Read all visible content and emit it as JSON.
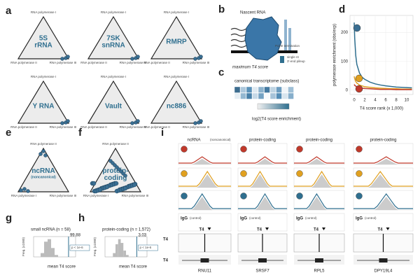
{
  "panel_labels": [
    "a",
    "b",
    "c",
    "d",
    "e",
    "f",
    "g",
    "h",
    "i"
  ],
  "polymerases": [
    "RNA polymerase I",
    "RNA polymerase II",
    "RNA polymerase III"
  ],
  "a": {
    "triangles": [
      {
        "label": [
          "5S",
          "rRNA"
        ]
      },
      {
        "label": [
          "7SK",
          "snRNA"
        ]
      },
      {
        "label": [
          "RMRP"
        ]
      },
      {
        "label": [
          "Y RNA"
        ]
      },
      {
        "label": [
          "Vault"
        ]
      },
      {
        "label": [
          "nc886"
        ]
      }
    ]
  },
  "b": {
    "nascent": "Nascent RNA",
    "termination": "Pol III termination",
    "pileup": [
      "single nt",
      "3′-end pileup"
    ],
    "max": "maximum T4 score"
  },
  "c": {
    "title": "canonical transcriptome (subclass)",
    "colorbar": "log2(T4 score enrichment)"
  },
  "e": {
    "label": [
      "ncRNA",
      "(noncanonical)"
    ]
  },
  "f": {
    "label": [
      "protein-",
      "coding"
    ]
  },
  "g": {
    "title": "small ncRNA (n = 58)",
    "ylabel": "Freq. (x1000)",
    "xlabel": "mean T4 score",
    "xlim": [
      0,
      120
    ],
    "ylim": [
      0,
      1.6
    ],
    "bins": [
      20,
      30,
      40,
      50,
      60,
      70
    ],
    "counts": [
      0.3,
      1.2,
      1.4,
      0.7,
      0.15
    ],
    "marker": 99.88,
    "marker_label": "99.88",
    "p": "p < 1e-6"
  },
  "h": {
    "title": "protein-coding (n = 1,572)",
    "ylabel": "Freq. (x1000)",
    "xlabel": "mean T4 score",
    "xlim": [
      0,
      4
    ],
    "ylim": [
      0,
      1.6
    ],
    "bins": [
      0.75,
      1,
      1.25,
      1.5,
      1.75,
      2,
      2.25
    ],
    "counts": [
      0.3,
      1.0,
      1.4,
      1.1,
      0.5,
      0.15
    ],
    "marker": 3.03,
    "marker_label": "3.03",
    "p": "p < 1e-6"
  },
  "i": {
    "columns": [
      {
        "title": "ncRNA",
        "subtitle": "(noncanonical)",
        "gene": "RNU11"
      },
      {
        "title": "protein-coding",
        "gene": "SRSF7"
      },
      {
        "title": "protein-coding",
        "gene": "RPL5"
      },
      {
        "title": "protein-coding",
        "gene": "DPY19L4"
      }
    ],
    "igg": "IgG",
    "igg_note": "(control)",
    "t4": "T4"
  },
  "chart_data": {
    "type": "line",
    "xlabel": "T4 score rank (x 1,000)",
    "ylabel": "polymerase enrichment (obs/exp)",
    "x": [
      0,
      0.1,
      0.3,
      0.5,
      1,
      1.5,
      2,
      3,
      4,
      5,
      6,
      7,
      8,
      9,
      10,
      11
    ],
    "series": [
      {
        "color": "#2f6f8f",
        "values": [
          235,
          180,
          120,
          90,
          60,
          45,
          38,
          28,
          22,
          18,
          15,
          13,
          11,
          10,
          9,
          8
        ]
      },
      {
        "color": "#e0a020",
        "values": [
          48,
          40,
          30,
          25,
          18,
          15,
          12,
          10,
          8,
          7,
          6,
          5,
          5,
          4,
          4,
          4
        ]
      },
      {
        "color": "#c0392b",
        "values": [
          20,
          17,
          14,
          12,
          9,
          7,
          6,
          5,
          4,
          3,
          3,
          3,
          2,
          2,
          2,
          2
        ]
      }
    ],
    "xlim": [
      -0.8,
      11.2
    ],
    "ylim": [
      -15,
      260
    ],
    "xticks": [
      0,
      2,
      4,
      6,
      8,
      10
    ],
    "yticks": [
      0,
      100,
      200
    ],
    "grid": true
  }
}
